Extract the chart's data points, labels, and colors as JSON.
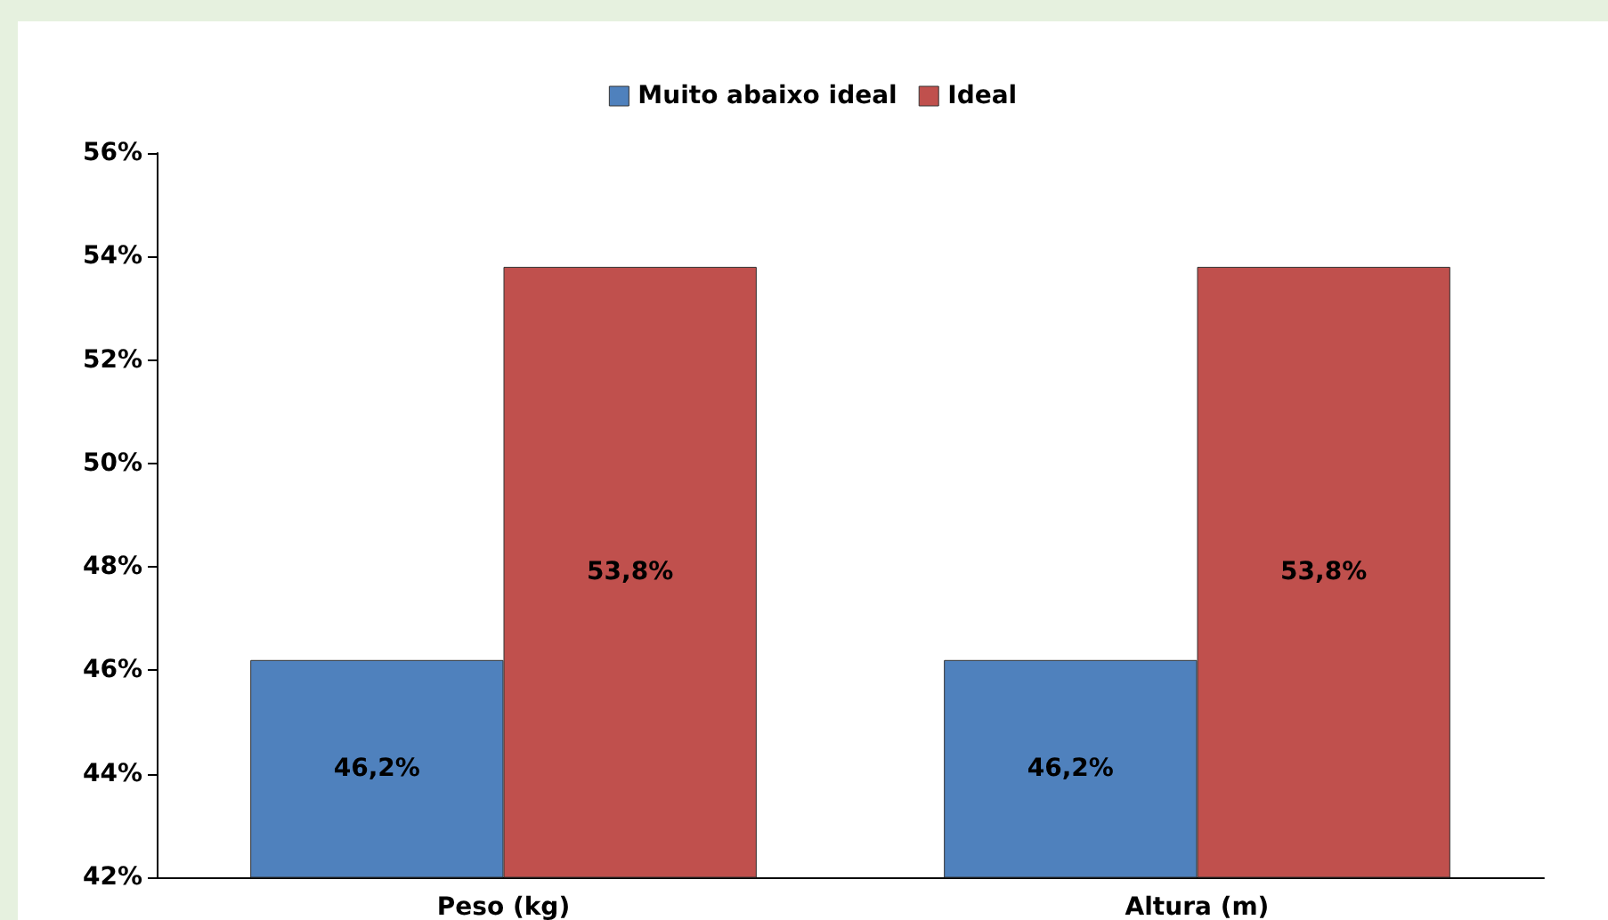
{
  "chart_data": {
    "type": "bar",
    "categories": [
      "Peso (kg)",
      "Altura (m)"
    ],
    "series": [
      {
        "name": "Muito abaixo ideal",
        "color": "#4f81bd",
        "values": [
          46.2,
          46.2
        ],
        "value_labels": [
          "46,2%",
          "46,2%"
        ]
      },
      {
        "name": "Ideal",
        "color": "#c0504d",
        "values": [
          53.8,
          53.8
        ],
        "value_labels": [
          "53,8%",
          "53,8%"
        ]
      }
    ],
    "ylim": [
      42,
      56
    ],
    "yticks": [
      {
        "value": 42,
        "label": "42%"
      },
      {
        "value": 44,
        "label": "44%"
      },
      {
        "value": 46,
        "label": "46%"
      },
      {
        "value": 48,
        "label": "48%"
      },
      {
        "value": 50,
        "label": "50%"
      },
      {
        "value": 52,
        "label": "52%"
      },
      {
        "value": 54,
        "label": "54%"
      },
      {
        "value": 56,
        "label": "56%"
      }
    ],
    "grid": false,
    "legend": "top"
  }
}
